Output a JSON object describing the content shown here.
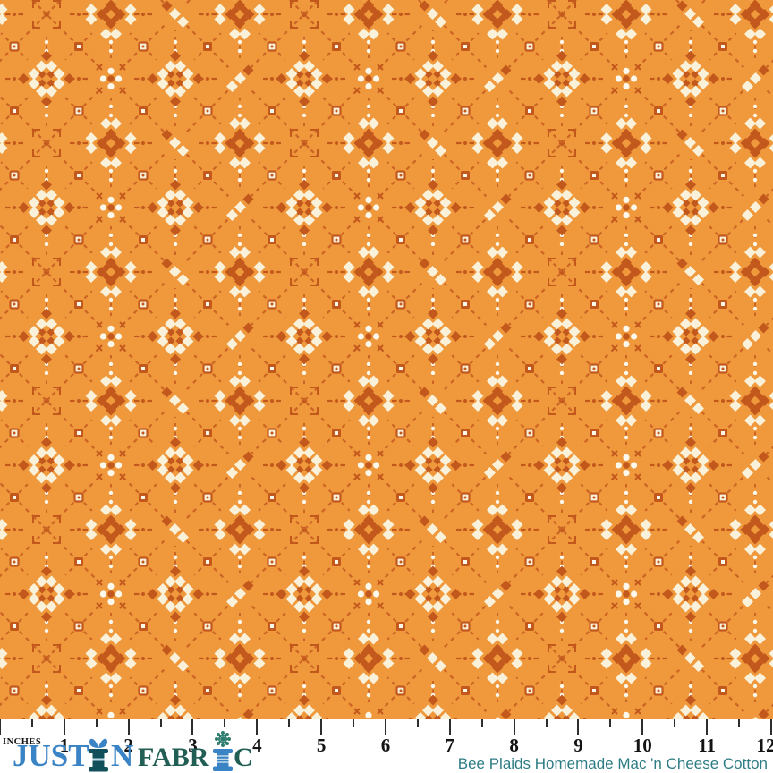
{
  "product": {
    "name": "Bee Plaids Homemade Mac 'n Cheese Cotton"
  },
  "brand": {
    "full_name": "JUSTIN FABRIC",
    "justin_left": "JUST",
    "justin_right": "N",
    "fabric_left": "FABR",
    "fabric_right": "C",
    "icons": [
      "thread-spool-icon",
      "ribbon-bow-icon",
      "lace-flower-icon"
    ]
  },
  "ruler": {
    "unit_label": "INCHES",
    "numbers": [
      1,
      2,
      3,
      4,
      5,
      6,
      7,
      8,
      9,
      10,
      11,
      12
    ],
    "ticks_per_inch": 2
  },
  "fabric": {
    "description": "orange cotton with diamond lattice of dashed stitches, cream flower clusters, dot posies, snowflake sprigs and square nodes",
    "motifs": [
      "quad-flower-cluster",
      "four-dot-posy",
      "diagonal-flower-pair",
      "snowflake-sprig",
      "square-node",
      "dashed-diamond-lattice"
    ]
  },
  "colors": {
    "bg": "#EF993C",
    "rust": "#C3581D",
    "dash": "#CC6424",
    "cream": "#FAF1DA",
    "white": "#FDF8EC",
    "ruler-bg": "#FFFFFF",
    "tick": "#2E2E2E",
    "number": "#141414",
    "logo-blue": "#3A83C4",
    "logo-teal": "#11505A",
    "logo-green": "#215E53",
    "flower-teal": "#2E7D6E",
    "thread-light": "#BFD9E8",
    "caption": "#2E7D84"
  }
}
